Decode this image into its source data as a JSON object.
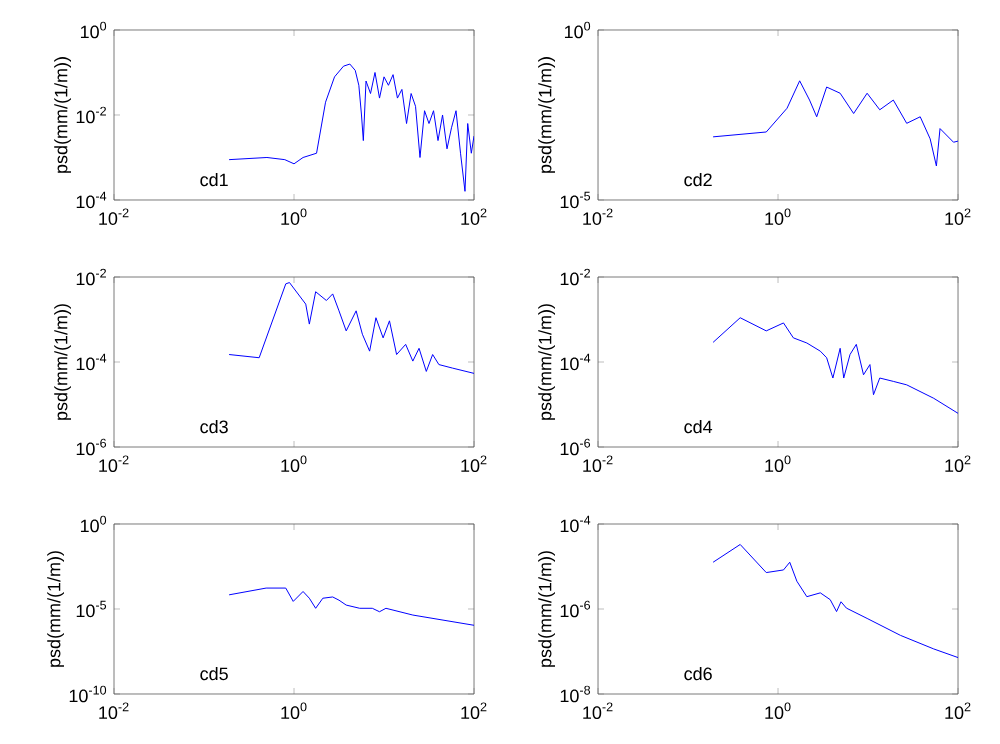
{
  "chart_data": [
    {
      "type": "line",
      "color": "#0000ff",
      "log": "xy",
      "ylabel": "psd(mm/(1/m))",
      "annotations": [
        "cd1"
      ],
      "xlim": [
        0.01,
        100
      ],
      "ylim": [
        0.0001,
        1
      ],
      "xticks": [
        {
          "value": 0.01,
          "label": "10$^{-2}$"
        },
        {
          "value": 1,
          "label": "10$^{0}$"
        },
        {
          "value": 100,
          "label": "10$^{2}$"
        }
      ],
      "yticks": [
        {
          "value": 0.0001,
          "label": "10$^{-4}$"
        },
        {
          "value": 0.01,
          "label": "10$^{-2}$"
        },
        {
          "value": 1,
          "label": "10$^{0}$"
        }
      ],
      "x": [
        0.19,
        0.5,
        0.79,
        1,
        1.26,
        1.78,
        2.24,
        2.82,
        3.55,
        4.17,
        4.79,
        5.25,
        5.62,
        5.89,
        6.31,
        7.08,
        7.94,
        8.91,
        10,
        11.2,
        12.6,
        14.1,
        15.8,
        17.8,
        20,
        22.4,
        25.1,
        28.2,
        31.6,
        35.5,
        39.8,
        44.7,
        50.1,
        56.2,
        63.1,
        70.8,
        79.4,
        85.1,
        93.3,
        100
      ],
      "values": [
        0.00089,
        0.001,
        0.00089,
        0.00071,
        0.001,
        0.00126,
        0.02,
        0.079,
        0.141,
        0.158,
        0.112,
        0.05,
        0.01,
        0.0025,
        0.063,
        0.032,
        0.1,
        0.025,
        0.079,
        0.05,
        0.089,
        0.025,
        0.04,
        0.0063,
        0.032,
        0.016,
        0.001,
        0.0126,
        0.0063,
        0.0126,
        0.0025,
        0.01,
        0.0016,
        0.005,
        0.0126,
        0.00126,
        0.00016,
        0.0063,
        0.00126,
        0.0032
      ]
    },
    {
      "type": "line",
      "color": "#0000ff",
      "log": "xy",
      "ylabel": "psd(mm/(1/m))",
      "annotations": [
        "cd2"
      ],
      "xlim": [
        0.01,
        100
      ],
      "ylim": [
        1e-05,
        1
      ],
      "xticks": [
        {
          "value": 0.01,
          "label": "10$^{-2}$"
        },
        {
          "value": 1,
          "label": "10$^{0}$"
        },
        {
          "value": 100,
          "label": "10$^{2}$"
        }
      ],
      "yticks": [
        {
          "value": 1e-05,
          "label": "10$^{-5}$"
        },
        {
          "value": 1,
          "label": "10$^{0}$"
        }
      ],
      "x": [
        0.19,
        0.74,
        1.26,
        1.74,
        2.24,
        2.69,
        3.47,
        4.9,
        6.92,
        9.77,
        13.5,
        19.1,
        26.9,
        38,
        49,
        57.5,
        63.1,
        89.1,
        100
      ],
      "values": [
        0.00072,
        0.001,
        0.005,
        0.032,
        0.0087,
        0.0028,
        0.021,
        0.0138,
        0.0035,
        0.0138,
        0.0045,
        0.0087,
        0.0018,
        0.0028,
        0.00063,
        0.0001,
        0.00126,
        0.0005,
        0.00054
      ]
    },
    {
      "type": "line",
      "color": "#0000ff",
      "log": "xy",
      "ylabel": "psd(mm/(1/m))",
      "annotations": [
        "cd3"
      ],
      "xlim": [
        0.01,
        100
      ],
      "ylim": [
        1e-06,
        0.01
      ],
      "xticks": [
        {
          "value": 0.01,
          "label": "10$^{-2}$"
        },
        {
          "value": 1,
          "label": "10$^{0}$"
        },
        {
          "value": 100,
          "label": "10$^{2}$"
        }
      ],
      "yticks": [
        {
          "value": 1e-06,
          "label": "10$^{-6}$"
        },
        {
          "value": 0.0001,
          "label": "10$^{-4}$"
        },
        {
          "value": 0.01,
          "label": "10$^{-2}$"
        }
      ],
      "x": [
        0.19,
        0.41,
        0.81,
        0.89,
        1.35,
        1.48,
        1.74,
        2.29,
        2.69,
        3.16,
        3.8,
        4.9,
        5.75,
        6.92,
        8.13,
        9.77,
        11.5,
        13.8,
        17.4,
        20.9,
        24.5,
        29.5,
        34.7,
        40.7,
        57.5,
        100
      ],
      "values": [
        0.00015,
        0.000126,
        0.0069,
        0.0074,
        0.0023,
        0.00078,
        0.0045,
        0.0028,
        0.004,
        0.0016,
        0.00054,
        0.0016,
        0.00045,
        0.00018,
        0.0011,
        0.00037,
        0.00093,
        0.00015,
        0.00026,
        0.000105,
        0.00021,
        6e-05,
        0.00015,
        8.7e-05,
        7.2e-05,
        5.4e-05
      ]
    },
    {
      "type": "line",
      "color": "#0000ff",
      "log": "xy",
      "ylabel": "psd(mm/(1/m))",
      "annotations": [
        "cd4"
      ],
      "xlim": [
        0.01,
        100
      ],
      "ylim": [
        1e-06,
        0.01
      ],
      "xticks": [
        {
          "value": 0.01,
          "label": "10$^{-2}$"
        },
        {
          "value": 1,
          "label": "10$^{0}$"
        },
        {
          "value": 100,
          "label": "10$^{2}$"
        }
      ],
      "yticks": [
        {
          "value": 1e-06,
          "label": "10$^{-6}$"
        },
        {
          "value": 0.0001,
          "label": "10$^{-4}$"
        },
        {
          "value": 0.01,
          "label": "10$^{-2}$"
        }
      ],
      "x": [
        0.19,
        0.38,
        0.74,
        1.15,
        1.48,
        2.09,
        2.95,
        3.47,
        4.07,
        4.9,
        5.37,
        6.31,
        7.41,
        8.91,
        10.5,
        11.5,
        13.5,
        19.1,
        26.9,
        53.7,
        100
      ],
      "values": [
        0.00029,
        0.0011,
        0.00054,
        0.00083,
        0.00037,
        0.00028,
        0.00018,
        0.000126,
        4.2e-05,
        0.00021,
        4.2e-05,
        0.00015,
        0.00026,
        5e-05,
        8.7e-05,
        1.7e-05,
        4.2e-05,
        3.5e-05,
        2.9e-05,
        1.4e-05,
        6.2e-06
      ]
    },
    {
      "type": "line",
      "color": "#0000ff",
      "log": "xy",
      "ylabel": "psd(mm/(1/m))",
      "annotations": [
        "cd5"
      ],
      "xlim": [
        0.01,
        100
      ],
      "ylim": [
        1e-10,
        1
      ],
      "xticks": [
        {
          "value": 0.01,
          "label": "10$^{-2}$"
        },
        {
          "value": 1,
          "label": "10$^{0}$"
        },
        {
          "value": 100,
          "label": "10$^{2}$"
        }
      ],
      "yticks": [
        {
          "value": 1e-10,
          "label": "10$^{-10}$"
        },
        {
          "value": 1e-05,
          "label": "10$^{-5}$"
        },
        {
          "value": 1,
          "label": "10$^{0}$"
        }
      ],
      "x": [
        0.19,
        0.49,
        0.81,
        0.98,
        1.26,
        1.48,
        1.74,
        2.09,
        2.69,
        3.16,
        3.8,
        5.37,
        7.41,
        8.91,
        10.5,
        20.9,
        100
      ],
      "values": [
        6.8e-05,
        0.00017,
        0.00017,
        2.8e-05,
        0.000107,
        4.3e-05,
        1.1e-05,
        4.3e-05,
        5.1e-05,
        3.3e-05,
        1.7e-05,
        1.1e-05,
        1.1e-05,
        6.9e-06,
        1.1e-05,
        4.4e-06,
        1.1e-06
      ]
    },
    {
      "type": "line",
      "color": "#0000ff",
      "log": "xy",
      "ylabel": "psd(mm/(1/m))",
      "annotations": [
        "cd6"
      ],
      "xlim": [
        0.01,
        100
      ],
      "ylim": [
        1e-08,
        0.0001
      ],
      "xticks": [
        {
          "value": 0.01,
          "label": "10$^{-2}$"
        },
        {
          "value": 1,
          "label": "10$^{0}$"
        },
        {
          "value": 100,
          "label": "10$^{2}$"
        }
      ],
      "yticks": [
        {
          "value": 1e-08,
          "label": "10$^{-8}$"
        },
        {
          "value": 1e-06,
          "label": "10$^{-6}$"
        },
        {
          "value": 0.0001,
          "label": "10$^{-4}$"
        }
      ],
      "x": [
        0.19,
        0.38,
        0.74,
        1.15,
        1.35,
        1.62,
        2.09,
        2.95,
        3.8,
        4.47,
        5.01,
        5.75,
        9.77,
        22.9,
        53.7,
        100
      ],
      "values": [
        1.26e-05,
        3.3e-05,
        7.2e-06,
        8.3e-06,
        1.26e-05,
        4.5e-06,
        1.95e-06,
        2.4e-06,
        1.66e-06,
        8.7e-07,
        1.48e-06,
        1.05e-06,
        6e-07,
        2.4e-07,
        1.15e-07,
        7.2e-08
      ]
    }
  ]
}
